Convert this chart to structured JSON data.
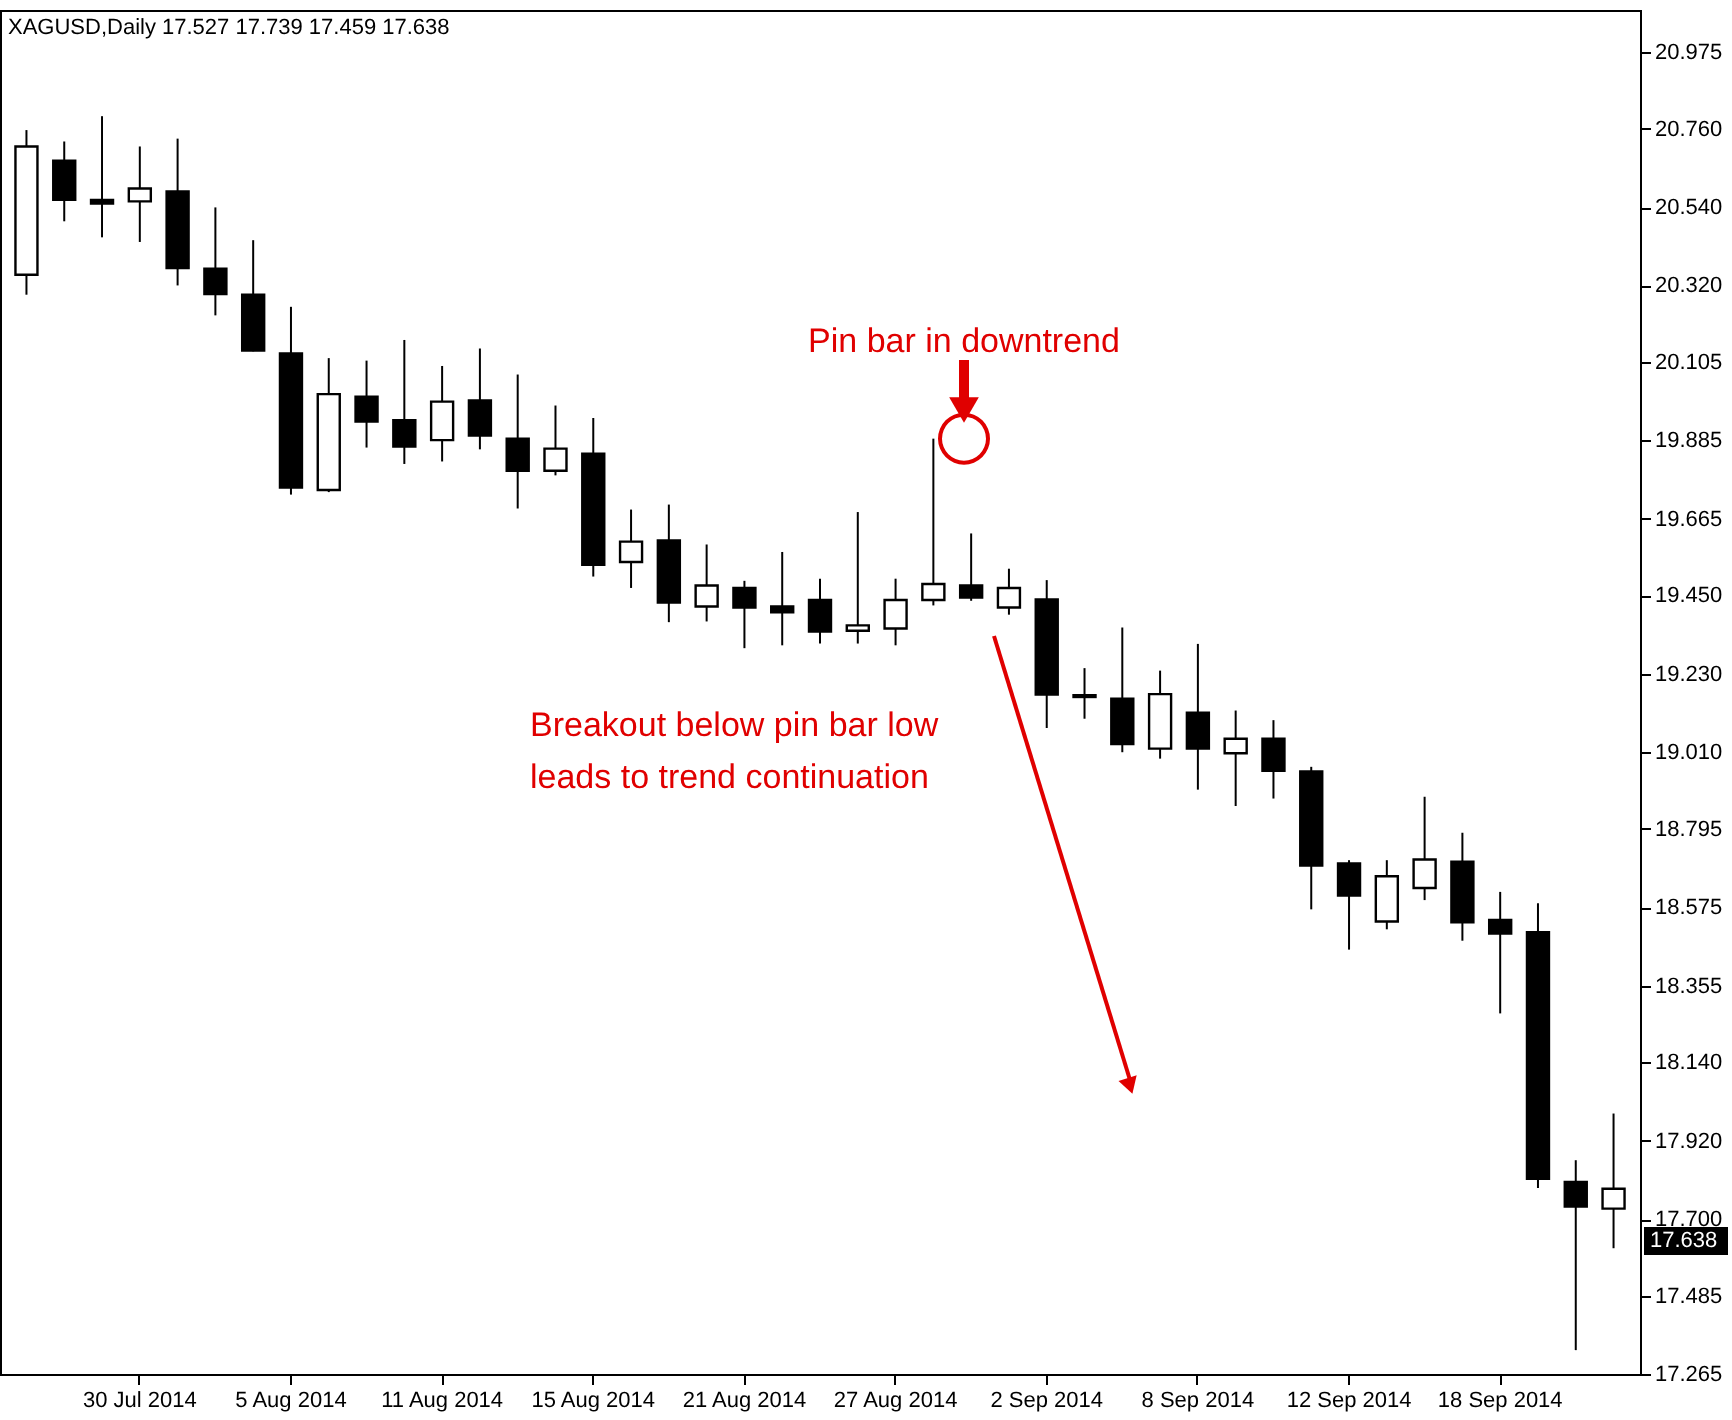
{
  "chart_data": {
    "type": "candlestick",
    "title": "XAGUSD,Daily 17.527 17.739 17.459 17.638",
    "categories": [
      null,
      null,
      null,
      "30 Jul 2014",
      null,
      null,
      null,
      "5 Aug 2014",
      null,
      null,
      null,
      "11 Aug 2014",
      null,
      null,
      null,
      "15 Aug 2014",
      null,
      null,
      null,
      "21 Aug 2014",
      null,
      null,
      null,
      "27 Aug 2014",
      null,
      null,
      null,
      "2 Sep 2014",
      null,
      null,
      null,
      "8 Sep 2014",
      null,
      null,
      null,
      "12 Sep 2014",
      null,
      null,
      null,
      "18 Sep 2014",
      null,
      null,
      null
    ],
    "ohlc": [
      [
        20.35,
        20.756,
        20.294,
        20.71
      ],
      [
        20.67,
        20.724,
        20.5,
        20.56
      ],
      [
        20.56,
        20.795,
        20.455,
        20.55
      ],
      [
        20.556,
        20.71,
        20.442,
        20.592
      ],
      [
        20.584,
        20.732,
        20.32,
        20.369
      ],
      [
        20.367,
        20.539,
        20.236,
        20.296
      ],
      [
        20.294,
        20.447,
        20.135,
        20.137
      ],
      [
        20.129,
        20.26,
        19.733,
        19.753
      ],
      [
        19.746,
        20.116,
        19.74,
        20.015
      ],
      [
        20.008,
        20.109,
        19.865,
        19.938
      ],
      [
        19.942,
        20.167,
        19.819,
        19.868
      ],
      [
        19.886,
        20.094,
        19.826,
        19.994
      ],
      [
        19.997,
        20.143,
        19.86,
        19.899
      ],
      [
        19.89,
        20.07,
        19.694,
        19.8
      ],
      [
        19.8,
        19.983,
        19.787,
        19.862
      ],
      [
        19.848,
        19.948,
        19.503,
        19.536
      ],
      [
        19.544,
        19.691,
        19.471,
        19.601
      ],
      [
        19.604,
        19.705,
        19.375,
        19.43
      ],
      [
        19.419,
        19.593,
        19.377,
        19.478
      ],
      [
        19.471,
        19.491,
        19.302,
        19.416
      ],
      [
        19.419,
        19.572,
        19.31,
        19.403
      ],
      [
        19.437,
        19.497,
        19.315,
        19.349
      ],
      [
        19.351,
        19.684,
        19.315,
        19.366
      ],
      [
        19.357,
        19.497,
        19.31,
        19.437
      ],
      [
        19.437,
        19.89,
        19.422,
        19.482
      ],
      [
        19.478,
        19.624,
        19.435,
        19.444
      ],
      [
        19.416,
        19.525,
        19.396,
        19.471
      ],
      [
        19.439,
        19.493,
        19.078,
        19.172
      ],
      [
        19.17,
        19.246,
        19.104,
        19.165
      ],
      [
        19.16,
        19.36,
        19.01,
        19.033
      ],
      [
        19.02,
        19.239,
        18.992,
        19.173
      ],
      [
        19.121,
        19.314,
        18.905,
        19.02
      ],
      [
        19.007,
        19.127,
        18.859,
        19.048
      ],
      [
        19.048,
        19.1,
        18.88,
        18.958
      ],
      [
        18.956,
        18.969,
        18.569,
        18.692
      ],
      [
        18.698,
        18.707,
        18.456,
        18.608
      ],
      [
        18.535,
        18.707,
        18.513,
        18.662
      ],
      [
        18.629,
        18.885,
        18.595,
        18.709
      ],
      [
        18.703,
        18.784,
        18.481,
        18.533
      ],
      [
        18.539,
        18.618,
        18.277,
        18.501
      ],
      [
        18.505,
        18.586,
        17.787,
        17.813
      ],
      [
        17.804,
        17.865,
        17.332,
        17.735
      ],
      [
        17.729,
        17.996,
        17.618,
        17.785
      ]
    ],
    "ylim": [
      17.265,
      21.093
    ],
    "yticks": [
      {
        "value": 20.975,
        "label": "20.975"
      },
      {
        "value": 20.76,
        "label": "20.760"
      },
      {
        "value": 20.54,
        "label": "20.540"
      },
      {
        "value": 20.32,
        "label": "20.320"
      },
      {
        "value": 20.105,
        "label": "20.105"
      },
      {
        "value": 19.885,
        "label": "19.885"
      },
      {
        "value": 19.665,
        "label": "19.665"
      },
      {
        "value": 19.45,
        "label": "19.450"
      },
      {
        "value": 19.23,
        "label": "19.230"
      },
      {
        "value": 19.01,
        "label": "19.010"
      },
      {
        "value": 18.795,
        "label": "18.795"
      },
      {
        "value": 18.575,
        "label": "18.575"
      },
      {
        "value": 18.355,
        "label": "18.355"
      },
      {
        "value": 18.14,
        "label": "18.140"
      },
      {
        "value": 17.92,
        "label": "17.920"
      },
      {
        "value": 17.7,
        "label": "17.700"
      },
      {
        "value": 17.485,
        "label": "17.485"
      },
      {
        "value": 17.265,
        "label": "17.265"
      }
    ],
    "annotations": [
      {
        "text": "Pin bar in downtrend",
        "y": 19.89
      },
      "Breakout below pin bar low\nleads to trend continuation",
      {
        "text": "17.638",
        "y": 17.638
      }
    ],
    "grid": false
  }
}
